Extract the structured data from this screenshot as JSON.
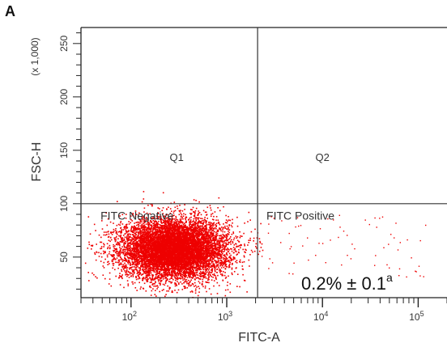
{
  "panel_label": "A",
  "chart_data": {
    "type": "scatter",
    "subtype": "flow-cytometry quadrant dot plot",
    "xlabel": "FITC-A",
    "ylabel": "FSC-H",
    "y_multiplier_label": "(x 1,000)",
    "x_scale": "log",
    "xlim": [
      30,
      200000
    ],
    "ylim": [
      12000,
      265000
    ],
    "x_ticks": [
      {
        "value": 100,
        "base": "10",
        "exp": "2"
      },
      {
        "value": 1000,
        "base": "10",
        "exp": "3"
      },
      {
        "value": 10000,
        "base": "10",
        "exp": "4"
      },
      {
        "value": 100000,
        "base": "10",
        "exp": "5"
      }
    ],
    "y_ticks": [
      {
        "value": 50000,
        "label": "50"
      },
      {
        "value": 100000,
        "label": "100"
      },
      {
        "value": 150000,
        "label": "150"
      },
      {
        "value": 200000,
        "label": "200"
      },
      {
        "value": 250000,
        "label": "250"
      }
    ],
    "gates": {
      "x": 2100,
      "y": 100000
    },
    "quadrant_labels": [
      {
        "id": "q1",
        "text": "Q1",
        "x": 300,
        "y": 140000
      },
      {
        "id": "q2",
        "text": "Q2",
        "x": 10000,
        "y": 140000
      },
      {
        "id": "fitc-negative",
        "text": "FITC Negative",
        "x": 48,
        "y": 85000
      },
      {
        "id": "fitc-positive",
        "text": "FITC Positive",
        "x": 2600,
        "y": 85000
      }
    ],
    "annotation": {
      "main": "0.2% ± 0.1",
      "superscript": "a"
    },
    "populations": [
      {
        "name": "FITC Negative",
        "center_log10_x": 2.45,
        "spread_log10_x": 0.45,
        "center_y": 58000,
        "spread_y": 14000,
        "n": 9000
      },
      {
        "name": "FITC Positive",
        "x_range": [
          2100,
          120000
        ],
        "y_range": [
          30000,
          90000
        ],
        "n": 70
      }
    ],
    "grid": false,
    "legend": "none",
    "point_color": "#ee0000",
    "frame_color": "#222222"
  }
}
